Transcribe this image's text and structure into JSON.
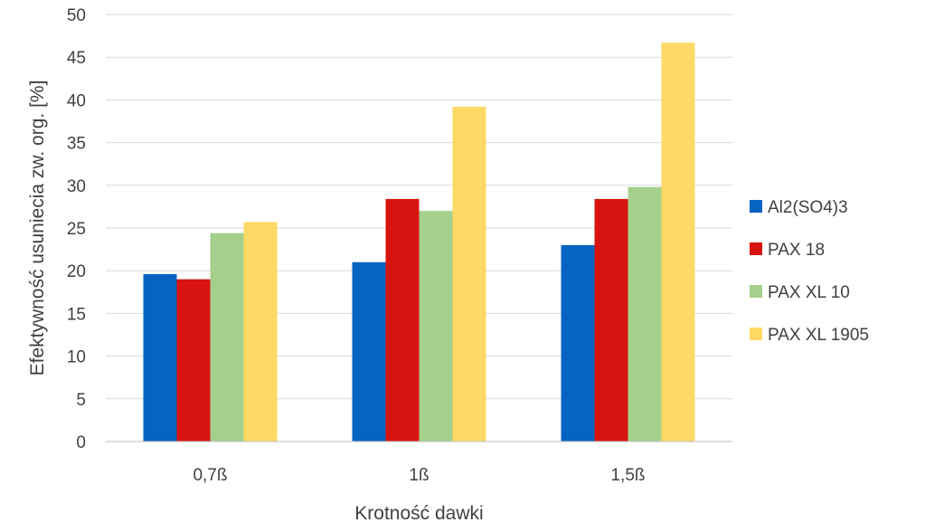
{
  "chart_data": {
    "type": "bar",
    "title": "",
    "xlabel": "Krotność dawki",
    "ylabel": "Efektywność usuniecia zw. org.  [%]",
    "categories": [
      "0,7ß",
      "1ß",
      "1,5ß"
    ],
    "ylim": [
      0,
      50
    ],
    "yticks": [
      0,
      5,
      10,
      15,
      20,
      25,
      30,
      35,
      40,
      45,
      50
    ],
    "grid": true,
    "legend_position": "right",
    "series": [
      {
        "name": "Al2(SO4)3",
        "color": "#0563c1",
        "values": [
          19.6,
          21.0,
          23.0
        ]
      },
      {
        "name": "PAX 18",
        "color": "#d7140f",
        "values": [
          19.0,
          28.4,
          28.4
        ]
      },
      {
        "name": "PAX XL 10",
        "color": "#a5d08c",
        "values": [
          24.4,
          27.0,
          29.8
        ]
      },
      {
        "name": "PAX XL 1905",
        "color": "#ffd966",
        "values": [
          25.7,
          39.2,
          46.7
        ]
      }
    ]
  }
}
